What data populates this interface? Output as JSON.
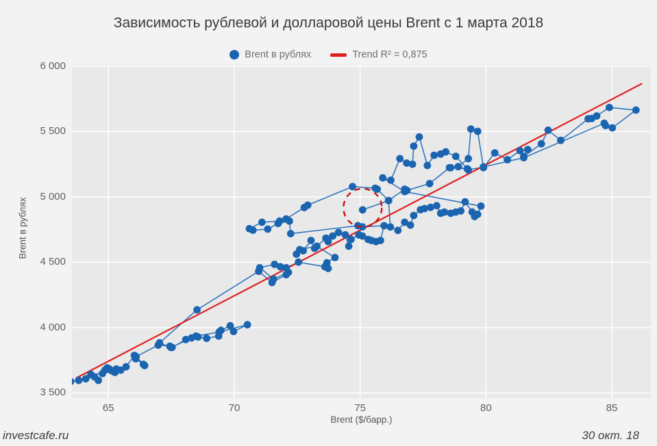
{
  "title": "Зависимость рублевой и долларовой цены Brent с 1 марта 2018",
  "legend": {
    "series_label": "Brent в рублях",
    "trend_label": "Trend R² = 0,875"
  },
  "footer": {
    "left": "investcafe.ru",
    "right": "30 окт. 18"
  },
  "colors": {
    "point": "#1b64b0",
    "line": "#2f76bd",
    "trend": "#e02020",
    "highlight": "#cc1111",
    "plot_bg": "#e9e9e9",
    "fig_bg": "#f3f3f3",
    "grid": "#ffffff"
  },
  "chart_data": {
    "type": "scatter",
    "connected": true,
    "title": "Зависимость рублевой и долларовой цены Brent с 1 марта 2018",
    "xlabel": "Brent ($/барр.)",
    "ylabel": "Brent в рублях",
    "xlim": [
      63.55,
      86.55
    ],
    "ylim": [
      3460,
      6010
    ],
    "grid": true,
    "legend_position": "top-center",
    "xticks": {
      "values": [
        65,
        70,
        75,
        80,
        85
      ],
      "labels": [
        "65",
        "70",
        "75",
        "80",
        "85"
      ]
    },
    "yticks": {
      "values": [
        3500,
        4000,
        4500,
        5000,
        5500,
        6000
      ],
      "labels": [
        "3 500",
        "4 000",
        "4 500",
        "5 000",
        "5 500",
        "6 000"
      ]
    },
    "series_name": "Brent в рублях",
    "points": [
      [
        63.5,
        3587
      ],
      [
        63.82,
        3596
      ],
      [
        64.1,
        3608
      ],
      [
        64.45,
        3622
      ],
      [
        64.6,
        3596
      ],
      [
        64.3,
        3642
      ],
      [
        64.76,
        3648
      ],
      [
        64.86,
        3674
      ],
      [
        64.95,
        3692
      ],
      [
        65.04,
        3683
      ],
      [
        65.17,
        3666
      ],
      [
        65.26,
        3657
      ],
      [
        65.08,
        3674
      ],
      [
        65.31,
        3683
      ],
      [
        65.49,
        3674
      ],
      [
        65.7,
        3700
      ],
      [
        66.03,
        3787
      ],
      [
        66.08,
        3761
      ],
      [
        66.39,
        3718
      ],
      [
        66.44,
        3709
      ],
      [
        66.1,
        3778
      ],
      [
        66.98,
        3866
      ],
      [
        67.44,
        3857
      ],
      [
        67.53,
        3848
      ],
      [
        68.07,
        3908
      ],
      [
        68.3,
        3921
      ],
      [
        68.56,
        3928
      ],
      [
        68.9,
        3918
      ],
      [
        69.38,
        3935
      ],
      [
        69.47,
        3979
      ],
      [
        69.84,
        4014
      ],
      [
        69.97,
        3970
      ],
      [
        70.52,
        4022
      ],
      [
        69.4,
        3966
      ],
      [
        68.48,
        3935
      ],
      [
        67.48,
        3848
      ],
      [
        67.03,
        3883
      ],
      [
        68.52,
        4136
      ],
      [
        70.97,
        4431
      ],
      [
        71.5,
        4345
      ],
      [
        72.06,
        4405
      ],
      [
        72.15,
        4423
      ],
      [
        71.56,
        4371
      ],
      [
        71.01,
        4458
      ],
      [
        71.6,
        4484
      ],
      [
        71.83,
        4466
      ],
      [
        72.06,
        4458
      ],
      [
        72.55,
        4501
      ],
      [
        73.6,
        4466
      ],
      [
        73.73,
        4453
      ],
      [
        73.68,
        4496
      ],
      [
        74.0,
        4536
      ],
      [
        73.28,
        4623
      ],
      [
        72.6,
        4597
      ],
      [
        72.47,
        4562
      ],
      [
        72.74,
        4588
      ],
      [
        73.05,
        4667
      ],
      [
        73.19,
        4606
      ],
      [
        73.64,
        4684
      ],
      [
        73.73,
        4658
      ],
      [
        73.91,
        4701
      ],
      [
        74.14,
        4728
      ],
      [
        74.41,
        4710
      ],
      [
        74.55,
        4623
      ],
      [
        74.64,
        4675
      ],
      [
        74.95,
        4710
      ],
      [
        75.09,
        4701
      ],
      [
        75.32,
        4675
      ],
      [
        75.45,
        4667
      ],
      [
        75.63,
        4658
      ],
      [
        75.81,
        4667
      ],
      [
        75.95,
        4780
      ],
      [
        75.09,
        4771
      ],
      [
        74.91,
        4780
      ],
      [
        72.24,
        4719
      ],
      [
        72.19,
        4815
      ],
      [
        71.74,
        4797
      ],
      [
        71.33,
        4754
      ],
      [
        70.74,
        4745
      ],
      [
        70.6,
        4757
      ],
      [
        71.1,
        4806
      ],
      [
        71.8,
        4815
      ],
      [
        72.06,
        4832
      ],
      [
        72.78,
        4919
      ],
      [
        72.92,
        4937
      ],
      [
        74.7,
        5079
      ],
      [
        75.6,
        5067
      ],
      [
        75.68,
        5059
      ],
      [
        76.13,
        4972
      ],
      [
        76.2,
        4770
      ],
      [
        76.5,
        4744
      ],
      [
        76.77,
        4806
      ],
      [
        77.0,
        4784
      ],
      [
        77.13,
        4858
      ],
      [
        77.4,
        4902
      ],
      [
        77.56,
        4911
      ],
      [
        77.8,
        4920
      ],
      [
        78.04,
        4933
      ],
      [
        78.2,
        4875
      ],
      [
        78.35,
        4884
      ],
      [
        78.6,
        4875
      ],
      [
        78.8,
        4884
      ],
      [
        79.0,
        4893
      ],
      [
        79.17,
        4963
      ],
      [
        79.45,
        4885
      ],
      [
        79.55,
        4850
      ],
      [
        79.67,
        4867
      ],
      [
        79.8,
        4930
      ],
      [
        76.77,
        5041
      ],
      [
        75.9,
        5146
      ],
      [
        76.22,
        5128
      ],
      [
        76.58,
        5293
      ],
      [
        76.85,
        5259
      ],
      [
        77.08,
        5250
      ],
      [
        77.13,
        5389
      ],
      [
        77.35,
        5459
      ],
      [
        77.67,
        5241
      ],
      [
        77.94,
        5319
      ],
      [
        78.2,
        5328
      ],
      [
        78.4,
        5345
      ],
      [
        78.8,
        5311
      ],
      [
        79.26,
        5215
      ],
      [
        78.6,
        5224
      ],
      [
        78.9,
        5232
      ],
      [
        79.3,
        5293
      ],
      [
        79.4,
        5520
      ],
      [
        79.67,
        5502
      ],
      [
        79.9,
        5224
      ],
      [
        80.35,
        5337
      ],
      [
        80.85,
        5285
      ],
      [
        81.35,
        5354
      ],
      [
        81.66,
        5363
      ],
      [
        81.5,
        5310
      ],
      [
        82.2,
        5407
      ],
      [
        82.47,
        5511
      ],
      [
        82.97,
        5433
      ],
      [
        84.06,
        5598
      ],
      [
        84.2,
        5600
      ],
      [
        84.4,
        5620
      ],
      [
        84.9,
        5685
      ],
      [
        85.96,
        5665
      ],
      [
        85.02,
        5529
      ],
      [
        84.75,
        5546
      ],
      [
        84.7,
        5564
      ],
      [
        81.5,
        5300
      ],
      [
        79.9,
        5230
      ],
      [
        79.3,
        5207
      ],
      [
        78.9,
        5232
      ],
      [
        78.55,
        5224
      ],
      [
        77.76,
        5102
      ],
      [
        76.86,
        5050
      ],
      [
        76.77,
        5059
      ],
      [
        76.13,
        4972
      ],
      [
        75.1,
        4901
      ]
    ],
    "trend": {
      "label": "Trend R² = 0,875",
      "r_squared": 0.875,
      "x1": 63.7,
      "y1": 3612,
      "x2": 86.2,
      "y2": 5868
    },
    "highlight": {
      "x": 75.1,
      "y": 4901,
      "radius_px": 28,
      "style": "dashed-circle"
    }
  }
}
